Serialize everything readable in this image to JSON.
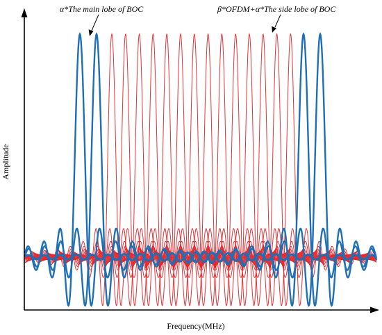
{
  "figure": {
    "annotations": {
      "left": "α*The main lobe of BOC",
      "right": "β*OFDM+α*The side lobe of BOC"
    },
    "xlabel": "Frequency(MHz)",
    "ylabel": "Amplitude",
    "colors": {
      "boc": "#1f6fb5",
      "ofdm": "#e8262a",
      "axis": "#000000"
    }
  }
}
